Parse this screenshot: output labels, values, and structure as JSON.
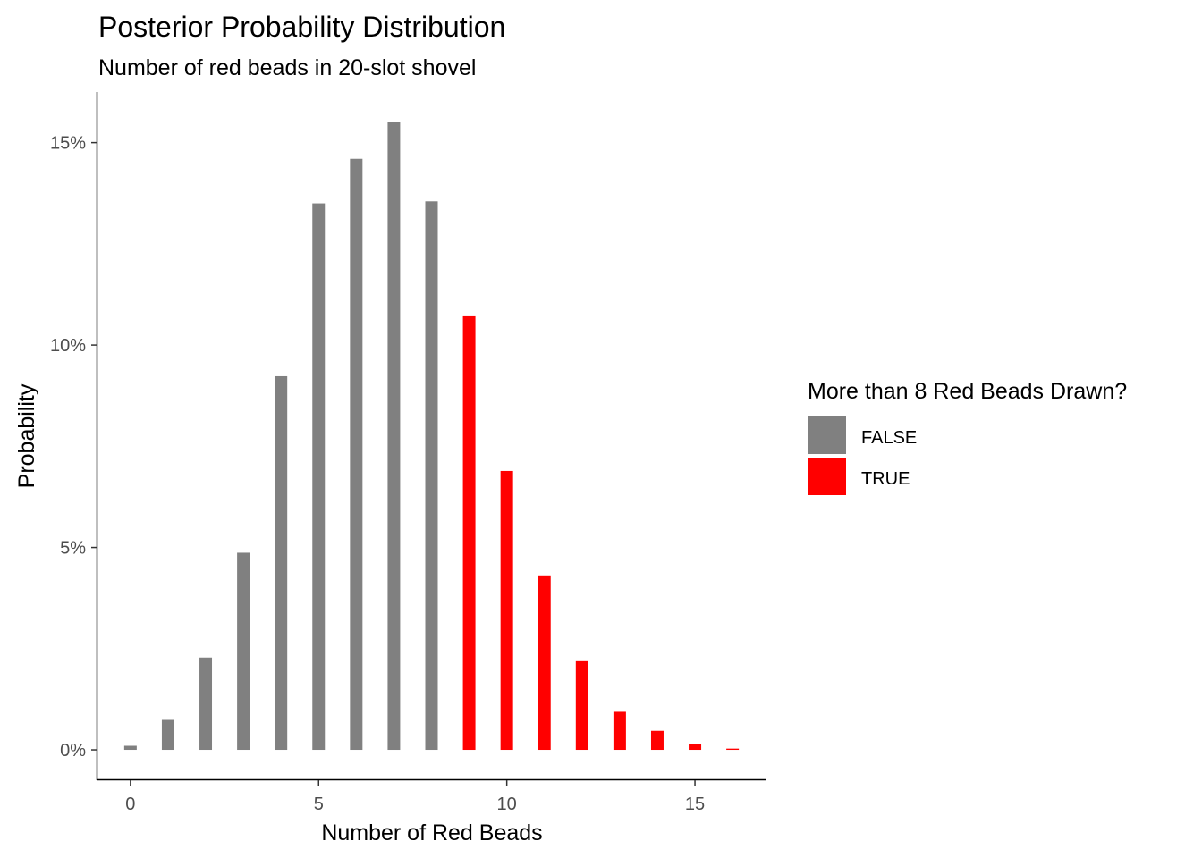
{
  "chart_data": {
    "type": "bar",
    "title": "Posterior Probability Distribution",
    "subtitle": "Number of red beads in 20-slot shovel",
    "xlabel": "Number of Red Beads",
    "ylabel": "Probability",
    "xlim": [
      -0.9,
      16.9
    ],
    "ylim": [
      -0.0075,
      0.1625
    ],
    "x_ticks": [
      0,
      5,
      10,
      15
    ],
    "x_tick_labels": [
      "0",
      "5",
      "10",
      "15"
    ],
    "y_ticks": [
      0,
      0.05,
      0.1,
      0.15
    ],
    "y_tick_labels": [
      "0%",
      "5%",
      "10%",
      "15%"
    ],
    "grid": false,
    "legend": {
      "title": "More than 8 Red Beads Drawn?",
      "placement": "right",
      "entries": [
        {
          "label": "FALSE",
          "color": "#808080"
        },
        {
          "label": "TRUE",
          "color": "#ff0000"
        }
      ]
    },
    "x": [
      0,
      1,
      2,
      3,
      4,
      5,
      6,
      7,
      8,
      9,
      10,
      11,
      12,
      13,
      14,
      15,
      16
    ],
    "values": [
      0.001,
      0.0074,
      0.0228,
      0.0487,
      0.0923,
      0.135,
      0.146,
      0.155,
      0.1355,
      0.1071,
      0.0689,
      0.0431,
      0.0219,
      0.0094,
      0.0047,
      0.0014,
      0.0003
    ],
    "groups": [
      "FALSE",
      "FALSE",
      "FALSE",
      "FALSE",
      "FALSE",
      "FALSE",
      "FALSE",
      "FALSE",
      "FALSE",
      "TRUE",
      "TRUE",
      "TRUE",
      "TRUE",
      "TRUE",
      "TRUE",
      "TRUE",
      "TRUE"
    ]
  }
}
